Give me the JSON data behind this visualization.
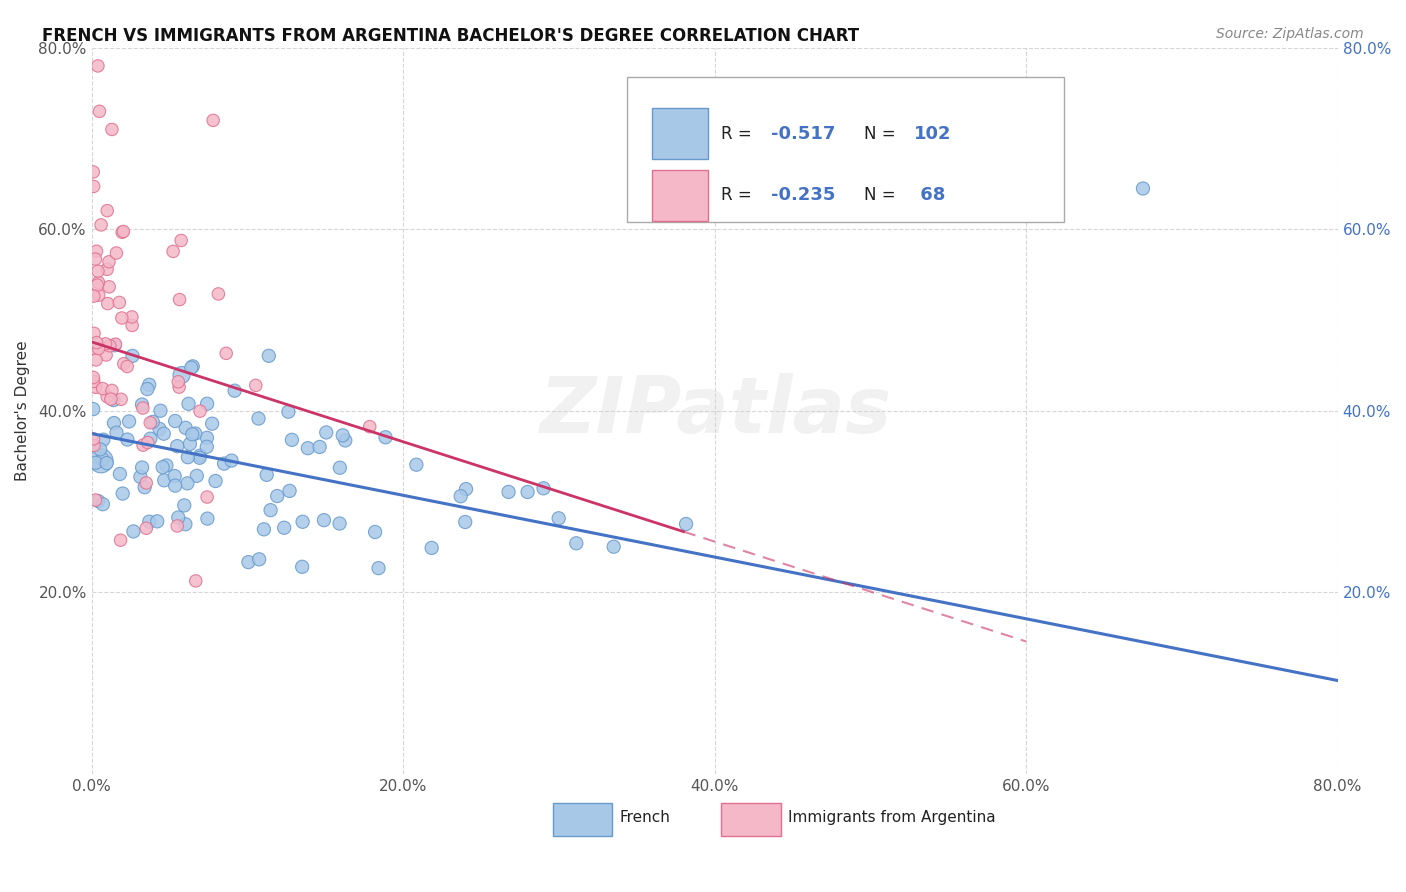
{
  "title": "FRENCH VS IMMIGRANTS FROM ARGENTINA BACHELOR'S DEGREE CORRELATION CHART",
  "source": "Source: ZipAtlas.com",
  "ylabel": "Bachelor's Degree",
  "xlim": [
    0.0,
    0.8
  ],
  "ylim": [
    0.0,
    0.8
  ],
  "xtick_vals": [
    0.0,
    0.2,
    0.4,
    0.6,
    0.8
  ],
  "xtick_labels": [
    "0.0%",
    "20.0%",
    "40.0%",
    "60.0%",
    "80.0%"
  ],
  "ytick_vals": [
    0.2,
    0.4,
    0.6,
    0.8
  ],
  "ytick_labels": [
    "20.0%",
    "40.0%",
    "60.0%",
    "80.0%"
  ],
  "series1_color": "#a8c8e8",
  "series1_edge": "#6699cc",
  "series2_color": "#f4b8c8",
  "series2_edge": "#e07090",
  "trend1_color": "#4472c4",
  "trend2_color": "#cc3366",
  "R1": -0.517,
  "N1": 102,
  "R2": -0.235,
  "N2": 68,
  "watermark": "ZIPatlas",
  "legend_label1": "French",
  "legend_label2": "Immigrants from Argentina",
  "title_fontsize": 12,
  "source_fontsize": 10,
  "tick_fontsize": 11,
  "ylabel_fontsize": 11
}
